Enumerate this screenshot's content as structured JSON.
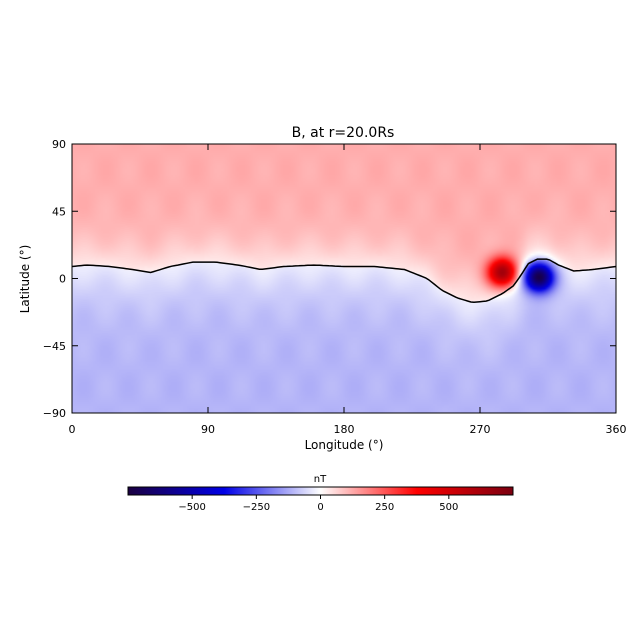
{
  "chart_data": {
    "type": "heatmap",
    "title": "B, at r=20.0Rs",
    "xlabel": "Longitude (°)",
    "ylabel": "Latitude (°)",
    "xlim": [
      0,
      360
    ],
    "ylim": [
      -90,
      90
    ],
    "xticks": [
      0,
      90,
      180,
      270,
      360
    ],
    "yticks": [
      -90,
      -45,
      0,
      45,
      90
    ],
    "colorbar": {
      "label": "nT",
      "range": [
        -750,
        750
      ],
      "ticks": [
        -500,
        -250,
        0,
        250,
        500
      ],
      "colors": [
        "#1a0040",
        "#0000e6",
        "#ffffff",
        "#ff0000",
        "#7a0010"
      ]
    },
    "field": {
      "north_level": 120,
      "south_level": -110,
      "neutral_line": {
        "lon": [
          0,
          10,
          25,
          40,
          52,
          65,
          80,
          95,
          110,
          125,
          140,
          160,
          180,
          200,
          220,
          235,
          245,
          255,
          265,
          275,
          285,
          292,
          297,
          302,
          308,
          315,
          322,
          332,
          345,
          360
        ],
        "lat": [
          8,
          9,
          8,
          6,
          4,
          8,
          11,
          11,
          9,
          6,
          8,
          9,
          8,
          8,
          6,
          0,
          -8,
          -13,
          -16,
          -15,
          -10,
          -5,
          2,
          10,
          13,
          13,
          9,
          5,
          6,
          8
        ]
      },
      "features": [
        {
          "lon": 285,
          "lat": 4,
          "value": 560
        },
        {
          "lon": 309,
          "lat": 1,
          "value": -680
        }
      ]
    }
  }
}
